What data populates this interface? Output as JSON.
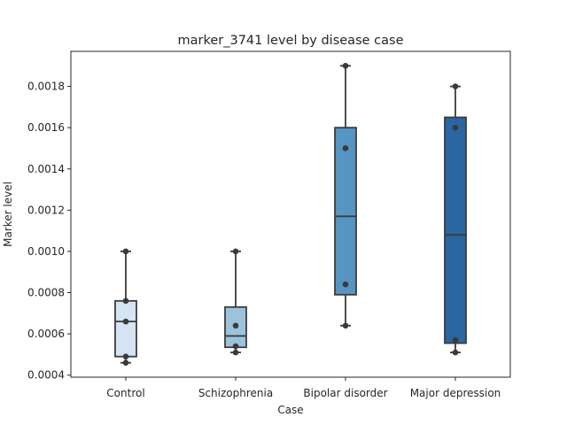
{
  "chart_data": {
    "type": "box",
    "title": "marker_3741 level by disease case",
    "xlabel": "Case",
    "ylabel": "Marker level",
    "ylim": [
      0.00039,
      0.00197
    ],
    "yticks": [
      "0.0004",
      "0.0006",
      "0.0008",
      "0.0010",
      "0.0012",
      "0.0014",
      "0.0016",
      "0.0018"
    ],
    "grid": false,
    "categories": [
      "Control",
      "Schizophrenia",
      "Bipolar disorder",
      "Major depression"
    ],
    "boxes": [
      {
        "category": "Control",
        "whisker_low": 0.00046,
        "q1": 0.00049,
        "median": 0.00066,
        "q3": 0.00076,
        "whisker_high": 0.001,
        "color": "#d4e4f2",
        "points": [
          0.00046,
          0.00049,
          0.00066,
          0.00076,
          0.001
        ]
      },
      {
        "category": "Schizophrenia",
        "whisker_low": 0.00051,
        "q1": 0.000535,
        "median": 0.00059,
        "q3": 0.00073,
        "whisker_high": 0.001,
        "color": "#9bc4dc",
        "points": [
          0.00051,
          0.00054,
          0.00064,
          0.001
        ]
      },
      {
        "category": "Bipolar disorder",
        "whisker_low": 0.00064,
        "q1": 0.00079,
        "median": 0.00117,
        "q3": 0.0016,
        "whisker_high": 0.0019,
        "color": "#5694c2",
        "points": [
          0.00064,
          0.00084,
          0.0015,
          0.0019
        ]
      },
      {
        "category": "Major depression",
        "whisker_low": 0.00051,
        "q1": 0.000555,
        "median": 0.00108,
        "q3": 0.00165,
        "whisker_high": 0.0018,
        "color": "#2a66a2",
        "points": [
          0.00051,
          0.00057,
          0.0016,
          0.0018
        ]
      }
    ]
  }
}
